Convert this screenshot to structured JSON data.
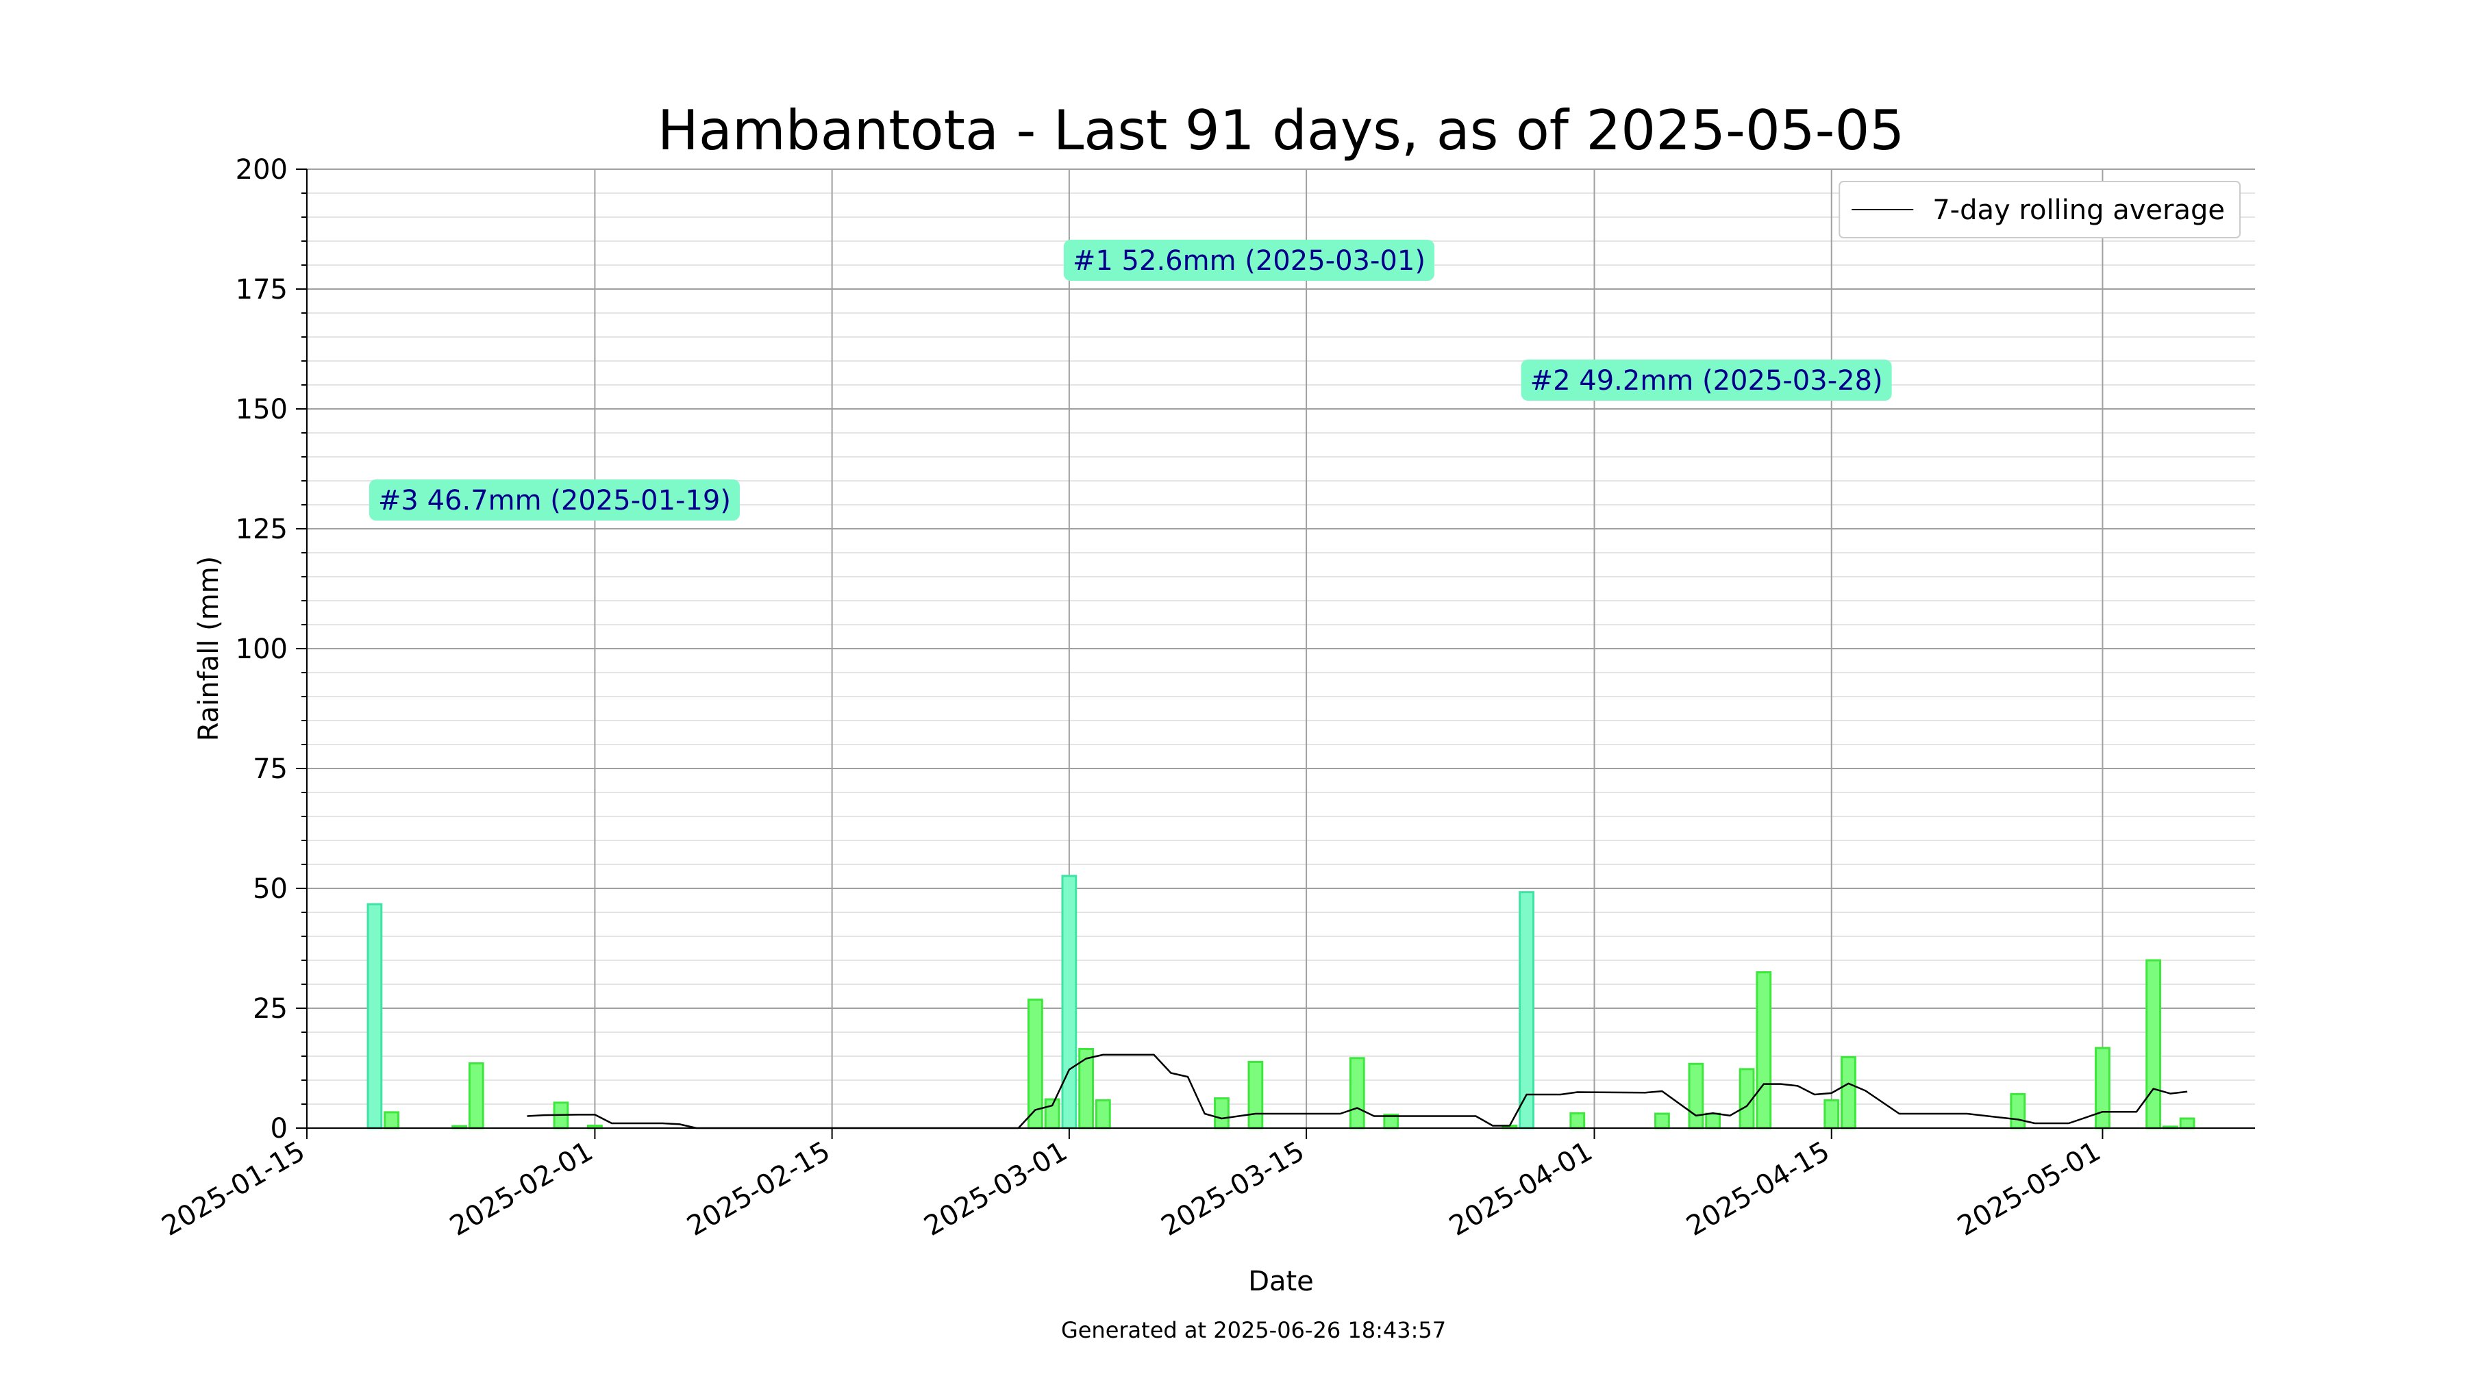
{
  "chart_data": {
    "type": "bar",
    "title": "Hambantota - Last 91 days, as of 2025-05-05",
    "xlabel": "Date",
    "ylabel": "Rainfall (mm)",
    "ylim": [
      0,
      200
    ],
    "xlim": [
      "2025-01-15",
      "2025-05-10"
    ],
    "yticks": [
      0,
      25,
      50,
      75,
      100,
      125,
      150,
      175,
      200
    ],
    "xticks": [
      "2025-01-15",
      "2025-02-01",
      "2025-02-15",
      "2025-03-01",
      "2025-03-15",
      "2025-04-01",
      "2025-04-15",
      "2025-05-01"
    ],
    "grid": true,
    "legend_position": "upper right",
    "colors": {
      "bar_fill": "#7cfc7c",
      "bar_edge": "#3ee63e",
      "top_bar_fill": "#7dfac8",
      "top_bar_edge": "#3fe3a3",
      "line": "#000000",
      "annotation_box": "#7dfac8",
      "annotation_text": "#00008b"
    },
    "rainfall": [
      {
        "date": "2025-01-19",
        "value": 46.7
      },
      {
        "date": "2025-01-20",
        "value": 3.3
      },
      {
        "date": "2025-01-24",
        "value": 0.4
      },
      {
        "date": "2025-01-25",
        "value": 13.5
      },
      {
        "date": "2025-01-30",
        "value": 5.3
      },
      {
        "date": "2025-02-01",
        "value": 0.5
      },
      {
        "date": "2025-02-27",
        "value": 26.8
      },
      {
        "date": "2025-02-28",
        "value": 6.0
      },
      {
        "date": "2025-03-01",
        "value": 52.6
      },
      {
        "date": "2025-03-02",
        "value": 16.5
      },
      {
        "date": "2025-03-03",
        "value": 5.8
      },
      {
        "date": "2025-03-10",
        "value": 6.2
      },
      {
        "date": "2025-03-12",
        "value": 13.8
      },
      {
        "date": "2025-03-18",
        "value": 14.6
      },
      {
        "date": "2025-03-20",
        "value": 2.8
      },
      {
        "date": "2025-03-27",
        "value": 0.5
      },
      {
        "date": "2025-03-28",
        "value": 49.2
      },
      {
        "date": "2025-03-31",
        "value": 3.1
      },
      {
        "date": "2025-04-05",
        "value": 3.0
      },
      {
        "date": "2025-04-07",
        "value": 13.4
      },
      {
        "date": "2025-04-08",
        "value": 3.0
      },
      {
        "date": "2025-04-10",
        "value": 12.3
      },
      {
        "date": "2025-04-11",
        "value": 32.5
      },
      {
        "date": "2025-04-15",
        "value": 5.8
      },
      {
        "date": "2025-04-16",
        "value": 14.8
      },
      {
        "date": "2025-04-26",
        "value": 7.1
      },
      {
        "date": "2025-05-01",
        "value": 16.7
      },
      {
        "date": "2025-05-04",
        "value": 35.0
      },
      {
        "date": "2025-05-05",
        "value": 0.3
      },
      {
        "date": "2025-05-06",
        "value": 2.0
      }
    ],
    "top_days": [
      "2025-03-01",
      "2025-03-28",
      "2025-01-19"
    ],
    "rolling_average": {
      "name": "7-day rolling average",
      "points": [
        {
          "date": "2025-01-28",
          "value": 2.5
        },
        {
          "date": "2025-01-29",
          "value": 2.7
        },
        {
          "date": "2025-01-31",
          "value": 2.8
        },
        {
          "date": "2025-02-01",
          "value": 2.8
        },
        {
          "date": "2025-02-02",
          "value": 1.0
        },
        {
          "date": "2025-02-05",
          "value": 1.0
        },
        {
          "date": "2025-02-06",
          "value": 0.8
        },
        {
          "date": "2025-02-07",
          "value": 0.0
        },
        {
          "date": "2025-02-26",
          "value": 0.0
        },
        {
          "date": "2025-02-27",
          "value": 3.8
        },
        {
          "date": "2025-02-28",
          "value": 4.7
        },
        {
          "date": "2025-03-01",
          "value": 12.2
        },
        {
          "date": "2025-03-02",
          "value": 14.5
        },
        {
          "date": "2025-03-03",
          "value": 15.3
        },
        {
          "date": "2025-03-06",
          "value": 15.3
        },
        {
          "date": "2025-03-07",
          "value": 11.5
        },
        {
          "date": "2025-03-08",
          "value": 10.7
        },
        {
          "date": "2025-03-09",
          "value": 3.0
        },
        {
          "date": "2025-03-10",
          "value": 2.0
        },
        {
          "date": "2025-03-11",
          "value": 2.5
        },
        {
          "date": "2025-03-12",
          "value": 3.0
        },
        {
          "date": "2025-03-17",
          "value": 3.0
        },
        {
          "date": "2025-03-18",
          "value": 4.2
        },
        {
          "date": "2025-03-19",
          "value": 2.5
        },
        {
          "date": "2025-03-25",
          "value": 2.5
        },
        {
          "date": "2025-03-26",
          "value": 0.5
        },
        {
          "date": "2025-03-27",
          "value": 0.5
        },
        {
          "date": "2025-03-28",
          "value": 7.0
        },
        {
          "date": "2025-03-30",
          "value": 7.0
        },
        {
          "date": "2025-03-31",
          "value": 7.5
        },
        {
          "date": "2025-04-04",
          "value": 7.4
        },
        {
          "date": "2025-04-05",
          "value": 7.7
        },
        {
          "date": "2025-04-07",
          "value": 2.6
        },
        {
          "date": "2025-04-08",
          "value": 3.1
        },
        {
          "date": "2025-04-09",
          "value": 2.6
        },
        {
          "date": "2025-04-10",
          "value": 4.6
        },
        {
          "date": "2025-04-11",
          "value": 9.2
        },
        {
          "date": "2025-04-12",
          "value": 9.2
        },
        {
          "date": "2025-04-13",
          "value": 8.8
        },
        {
          "date": "2025-04-14",
          "value": 7.0
        },
        {
          "date": "2025-04-15",
          "value": 7.3
        },
        {
          "date": "2025-04-16",
          "value": 9.3
        },
        {
          "date": "2025-04-17",
          "value": 7.8
        },
        {
          "date": "2025-04-19",
          "value": 3.0
        },
        {
          "date": "2025-04-23",
          "value": 3.0
        },
        {
          "date": "2025-04-26",
          "value": 1.8
        },
        {
          "date": "2025-04-27",
          "value": 1.0
        },
        {
          "date": "2025-04-29",
          "value": 1.0
        },
        {
          "date": "2025-05-01",
          "value": 3.4
        },
        {
          "date": "2025-05-03",
          "value": 3.4
        },
        {
          "date": "2025-05-04",
          "value": 8.2
        },
        {
          "date": "2025-05-05",
          "value": 7.2
        },
        {
          "date": "2025-05-06",
          "value": 7.6
        }
      ]
    },
    "annotations": [
      {
        "label": "#1 52.6mm (2025-03-01)",
        "anchor_date": "2025-03-01",
        "anchor_value": 181
      },
      {
        "label": "#2 49.2mm (2025-03-28)",
        "anchor_date": "2025-03-28",
        "anchor_value": 156
      },
      {
        "label": "#3 46.7mm (2025-01-19)",
        "anchor_date": "2025-01-19",
        "anchor_value": 131
      }
    ]
  },
  "footer": "Generated at 2025-06-26 18:43:57"
}
